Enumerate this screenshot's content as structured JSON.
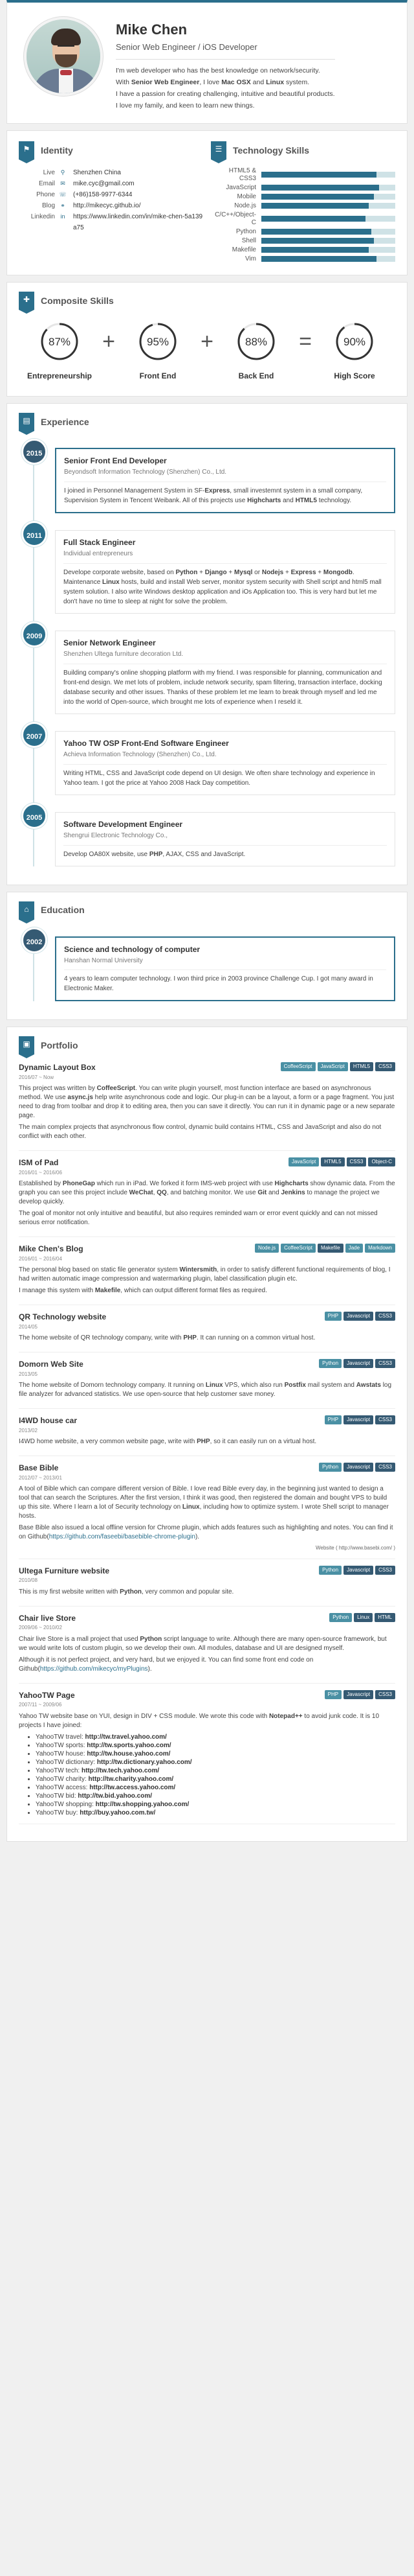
{
  "header": {
    "name": "Mike Chen",
    "title": "Senior Web Engineer / iOS Developer",
    "intro_1": "I'm web developer who has the best knowledge on network/security.",
    "intro_2a": "With ",
    "intro_2b": "Senior Web Engineer",
    "intro_2c": ", I love ",
    "intro_2d": "Mac OSX",
    "intro_2e": " and ",
    "intro_2f": "Linux",
    "intro_2g": " system.",
    "intro_3": "I have a passion for creating challenging, intuitive and beautiful products.",
    "intro_4": "I love my family, and keen to learn new things."
  },
  "identity": {
    "title": "Identity",
    "rows": [
      {
        "label": "Live",
        "icon": "map-marker-icon",
        "glyph": "⚲",
        "value": "Shenzhen China"
      },
      {
        "label": "Email",
        "icon": "envelope-icon",
        "glyph": "✉",
        "value": "mike.cyc@gmail.com"
      },
      {
        "label": "Phone",
        "icon": "phone-icon",
        "glyph": "☏",
        "value": "(+86)158-9977-6344"
      },
      {
        "label": "Blog",
        "icon": "link-icon",
        "glyph": "⚭",
        "value": "http://mikecyc.github.io/"
      },
      {
        "label": "Linkedin",
        "icon": "linkedin-icon",
        "glyph": "in",
        "value": "https://www.linkedin.com/in/mike-chen-5a139a75"
      }
    ]
  },
  "tech": {
    "title": "Technology Skills",
    "skills": [
      {
        "name": "HTML5 & CSS3",
        "level": 0.86
      },
      {
        "name": "JavaScript",
        "level": 0.88
      },
      {
        "name": "Mobile",
        "level": 0.84
      },
      {
        "name": "Node.js",
        "level": 0.8
      },
      {
        "name": "C/C++/Object-C",
        "level": 0.78
      },
      {
        "name": "Python",
        "level": 0.82
      },
      {
        "name": "Shell",
        "level": 0.84
      },
      {
        "name": "Makefile",
        "level": 0.8
      },
      {
        "name": "Vim",
        "level": 0.86
      }
    ]
  },
  "composite": {
    "title": "Composite Skills",
    "items": [
      {
        "pct": "87%",
        "value": 87,
        "label": "Entrepreneurship"
      },
      {
        "pct": "95%",
        "value": 95,
        "label": "Front End"
      },
      {
        "pct": "88%",
        "value": 88,
        "label": "Back End"
      },
      {
        "pct": "90%",
        "value": 90,
        "label": "High Score"
      }
    ],
    "ops": [
      "+",
      "+",
      "="
    ]
  },
  "experience": {
    "title": "Experience",
    "items": [
      {
        "year": "2015",
        "title": "Senior Front End Developer",
        "org": "Beyondsoft Information Technology (Shenzhen) Co., Ltd.",
        "desc": "I joined in Personnel Management System in SF-Express, small investemnt system in a small company, Supervision System in Tencent Weibank. All of this projects use Highcharts and HTML5 technology."
      },
      {
        "year": "2011",
        "title": "Full Stack Engineer",
        "org": "Individual entrepreneurs",
        "desc": "Develope corporate website, based on Python + Django + Mysql or Nodejs + Express + Mongodb. Maintenance Linux hosts, build and install Web server, monitor system security with Shell script and html5 mall system solution. I also write Windows desktop application and iOs Application too. This is very hard but let me don't have no time to sleep at night for solve the problem."
      },
      {
        "year": "2009",
        "title": "Senior Network Engineer",
        "org": "Shenzhen Ultega furniture decoration Ltd.",
        "desc": "Building company's online shopping platform with my friend. I was responsible for planning, communication and front-end design. We met lots of problem, include network security, spam filtering, transaction interface, docking database security and other issues. Thanks of these problem let me learn to break through myself and led me into the world of Open-source, which brought me lots of experience when I reseld it."
      },
      {
        "year": "2007",
        "title": "Yahoo TW OSP Front-End Software Engineer",
        "org": "Achieva Information Technology (Shenzhen) Co., Ltd.",
        "desc": "Writing HTML, CSS and JavaScript code depend on UI design. We often share technology and experience in Yahoo team. I got the price at Yahoo 2008 Hack Day competition."
      },
      {
        "year": "2005",
        "title": "Software Development Engineer",
        "org": "Shengrui Electronic Technology Co.,",
        "desc": "Develop OA80X website, use PHP, AJAX, CSS and JavaScript."
      }
    ]
  },
  "education": {
    "title": "Education",
    "items": [
      {
        "year": "2002",
        "title": "Science and technology of computer",
        "org": "Hanshan Normal University",
        "desc": "4 years to learn computer technology. I won third price in 2003 province Challenge Cup. I got many award in Electronic Maker."
      }
    ]
  },
  "portfolio": {
    "title": "Portfolio",
    "items": [
      {
        "title": "Dynamic Layout Box",
        "date": "2016/07 ~ Now",
        "tags": [
          "CoffeeScript",
          "JavaScript",
          "HTML5",
          "CSS3"
        ],
        "paras": [
          "This project was written by CoffeeScript. You can write plugin yourself, most function interface are based on asynchronous method. We use async.js help write asynchronous code and logic. Our plug-in can be a layout, a form or a page fragment. You just need to drag from toolbar and drop it to editing area, then you can save it directly. You can run it in dynamic page or a new separate page.",
          "The main complex projects that asynchronous flow control, dynamic build contains HTML, CSS and JavaScript and also do not conflict with each other."
        ]
      },
      {
        "title": "ISM of Pad",
        "date": "2016/01 ~ 2016/06",
        "tags": [
          "JavaScript",
          "HTML5",
          "CSS3",
          "Object-C"
        ],
        "paras": [
          "Established by PhoneGap which run in iPad. We forked it form IMS-web project with use Highcharts show dynamic data. From the graph you can see this project include WeChat, QQ, and batching monitor. We use Git and Jenkins to manage the project we develop quickly.",
          "The goal of monitor not only intuitive and beautiful, but also requires reminded warn or error event quickly and can not missed serious error notification."
        ]
      },
      {
        "title": "Mike Chen's Blog",
        "date": "2016/01 ~ 2016/04",
        "tags": [
          "Node.js",
          "CoffeeScript",
          "Makefile",
          "Jade",
          "Markdown"
        ],
        "paras": [
          "The personal blog based on static file generator system Wintersmith, in order to satisfy different functional requirements of blog, I had written automatic image compression and watermarking plugin, label classification plugin etc.",
          "I manage this system with Makefile, which can output different format files as required."
        ]
      },
      {
        "title": "QR Technology website",
        "date": "2014/05",
        "tags": [
          "PHP",
          "Javascript",
          "CSS3"
        ],
        "paras": [
          "The home website of QR technology company, write with PHP. It can running on a common virtual host."
        ]
      },
      {
        "title": "Domorn Web Site",
        "date": "2013/05",
        "tags": [
          "Python",
          "Javascript",
          "CSS3"
        ],
        "paras": [
          "The home website of Domorn technology company. It running on Linux VPS, which also run Postfix mail system and Awstats log file analyzer for advanced statistics. We use open-source that help customer save money."
        ]
      },
      {
        "title": "I4WD house car",
        "date": "2013/02",
        "tags": [
          "PHP",
          "Javascript",
          "CSS3"
        ],
        "paras": [
          "I4WD home website, a very common website page, write with PHP, so it can easily run on a virtual host."
        ]
      },
      {
        "title": "Base Bible",
        "date": "2012/07 ~ 2013/01",
        "tags": [
          "Python",
          "Javascript",
          "CSS3"
        ],
        "paras": [
          "A tool of Bible which can compare different version of Bible. I love read Bible every day, in the beginning just wanted to design a tool that can search the Scriptures. After the first version, I think it was good, then registered the domain and bought VPS to build up this site. Where I learn a lot of Security technology on Linux, including how to optimize system. I wrote Shell script to manager hosts.",
          "Base Bible also issued a local offline version for Chrome plugin, which adds features such as highlighting and notes. You can find it on Github(https://github.com/faseebi/basebible-chrome-plugin)."
        ],
        "source": "Website ( http://www.basebi.com/ )"
      },
      {
        "title": "Ultega Furniture website",
        "date": "2010/08",
        "tags": [
          "Python",
          "Javascript",
          "CSS3"
        ],
        "paras": [
          "This is my first website written with Python, very common and popular site."
        ]
      },
      {
        "title": "Chair live Store",
        "date": "2009/06 ~ 2010/02",
        "tags": [
          "Python",
          "Linux",
          "HTML"
        ],
        "paras": [
          "Chair live Store is a mall project that used Python script language to write. Although there are many open-source framework, but we would write lots of custom plugin, so we develop their own. All modules, database and UI are designed myself.",
          "Although it is not perfect project, and very hard, but we enjoyed it. You can find some front end code on Github(https://github.com/mikecyc/myPlugins)."
        ]
      },
      {
        "title": "YahooTW Page",
        "date": "2007/11 ~ 2009/06",
        "tags": [
          "PHP",
          "Javascript",
          "CSS3"
        ],
        "paras": [
          "Yahoo TW website base on YUI, design in DIV + CSS module. We wrote this code with Notepad++ to avoid junk code. It is 10 projects I have joined:"
        ],
        "list": [
          [
            "YahooTW travel: ",
            "http://tw.travel.yahoo.com/"
          ],
          [
            "YahooTW sports: ",
            "http://tw.sports.yahoo.com/"
          ],
          [
            "YahooTW house: ",
            "http://tw.house.yahoo.com/"
          ],
          [
            "YahooTW dictionary: ",
            "http://tw.dictionary.yahoo.com/"
          ],
          [
            "YahooTW tech: ",
            "http://tw.tech.yahoo.com/"
          ],
          [
            "YahooTW charity: ",
            "http://tw.charity.yahoo.com/"
          ],
          [
            "YahooTW access: ",
            "http://tw.access.yahoo.com/"
          ],
          [
            "YahooTW bid: ",
            "http://tw.bid.yahoo.com/"
          ],
          [
            "YahooTW shopping: ",
            "http://tw.shopping.yahoo.com/"
          ],
          [
            "YahooTW buy: ",
            "http://buy.yahoo.com.tw/"
          ]
        ]
      }
    ]
  },
  "colors": {
    "accent": "#2b6f8c",
    "accent_dark": "#355a73",
    "tag": "#4a90a4",
    "bar_bg": "#cfe2e6"
  }
}
